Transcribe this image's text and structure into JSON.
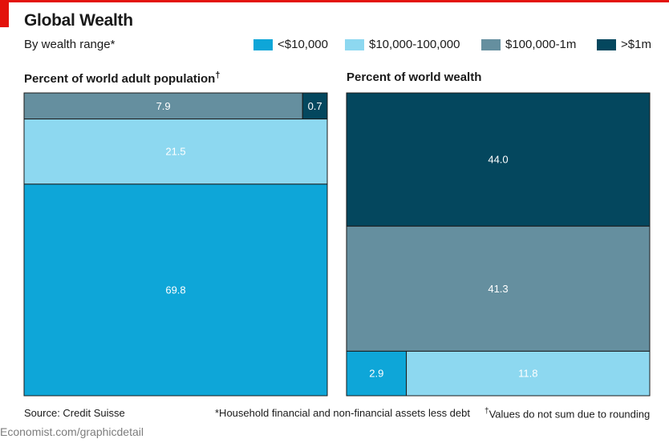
{
  "title": "Global Wealth",
  "subtitle": "By wealth range*",
  "colors": {
    "lt10k": "#0ea6d8",
    "10k_100k": "#8dd8f0",
    "100k_1m": "#658f9f",
    "gt1m": "#04475e",
    "accent": "#e3120b"
  },
  "legend": [
    {
      "label": "<$10,000",
      "color": "#0ea6d8"
    },
    {
      "label": "$10,000-100,000",
      "color": "#8dd8f0"
    },
    {
      "label": "$100,000-1m",
      "color": "#658f9f"
    },
    {
      "label": ">$1m",
      "color": "#04475e"
    }
  ],
  "chart_data": [
    {
      "type": "treemap",
      "title": "Percent of world adult population",
      "title_mark": "†",
      "series": [
        {
          "name": "<$10,000",
          "value": 69.8
        },
        {
          "name": "$10,000-100,000",
          "value": 21.5
        },
        {
          "name": "$100,000-1m",
          "value": 7.9
        },
        {
          "name": ">$1m",
          "value": 0.7
        }
      ]
    },
    {
      "type": "treemap",
      "title": "Percent of world wealth",
      "series": [
        {
          "name": "<$10,000",
          "value": 2.9
        },
        {
          "name": "$10,000-100,000",
          "value": 11.8
        },
        {
          "name": "$100,000-1m",
          "value": 41.3
        },
        {
          "name": ">$1m",
          "value": 44.0
        }
      ]
    }
  ],
  "footer": {
    "source": "Source: Credit Suisse",
    "note1": "*Household financial and non-financial assets less debt",
    "note2_mark": "†",
    "note2": "Values do not sum due to rounding",
    "site": "Economist.com/graphicdetail"
  }
}
